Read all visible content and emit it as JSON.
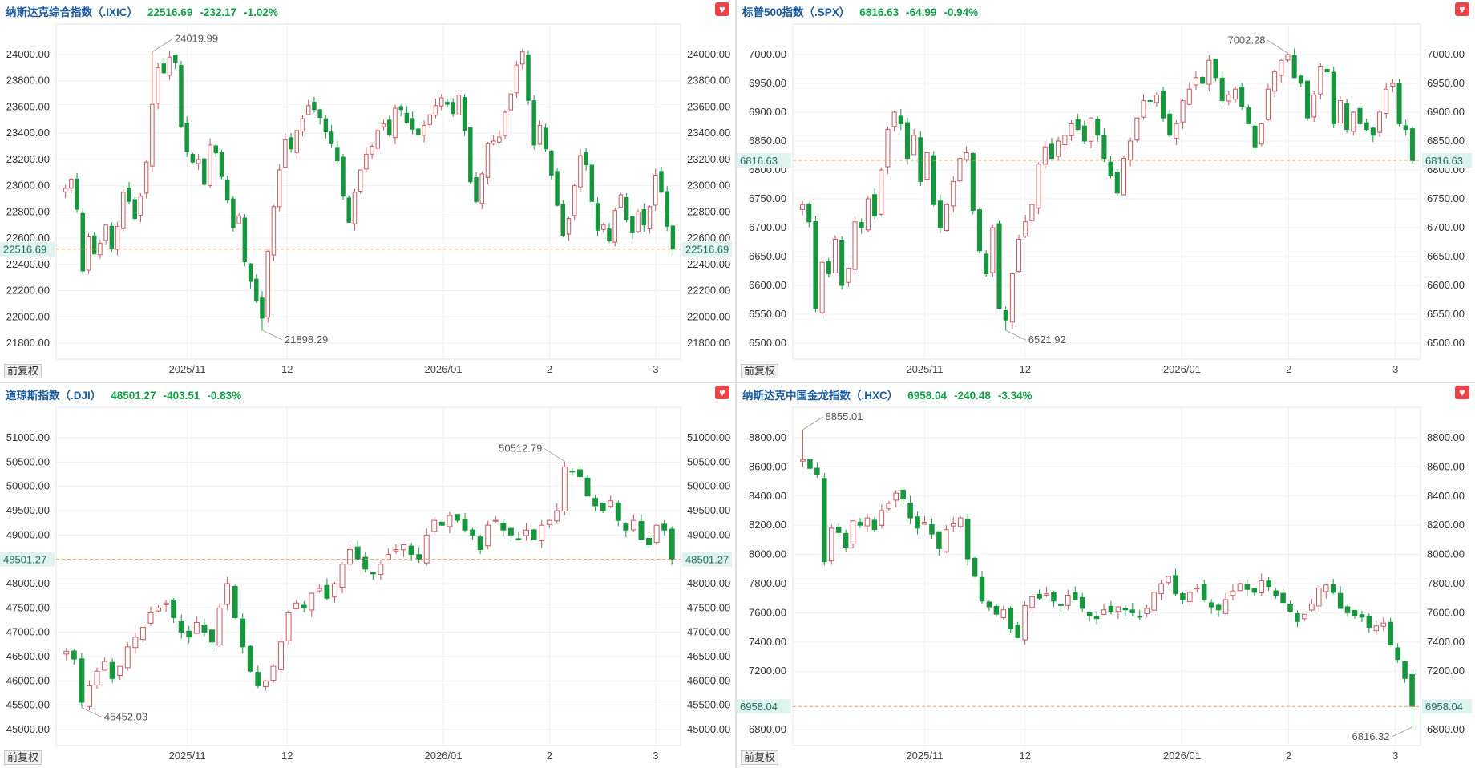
{
  "adjust_label": "前复权",
  "favorite_icon": "heart-icon",
  "colors": {
    "up": "#ffffff",
    "up_stroke": "#c9585f",
    "down": "#17963e",
    "grid": "#eef0f3",
    "ref_line": "#e8a06a",
    "price_tag": "#dff4ee",
    "text_green": "#16a04a",
    "name": "#1a5aa0"
  },
  "charts": [
    {
      "id": "ixic",
      "name": "纳斯达克综合指数（.IXIC）",
      "price": "22516.69",
      "change": "-232.17",
      "change_pct": "-1.02%",
      "chart_data": {
        "type": "candlestick",
        "y_ticks": [
          "24000.00",
          "23800.00",
          "23600.00",
          "23400.00",
          "23200.00",
          "23000.00",
          "22800.00",
          "22600.00",
          "22400.00",
          "22200.00",
          "22000.00",
          "21800.00"
        ],
        "y_range": [
          21800,
          24000
        ],
        "x_labels": [
          "2025/11",
          "12",
          "2026/01",
          "2",
          "3"
        ],
        "x_label_positions": [
          0.21,
          0.37,
          0.62,
          0.79,
          0.96
        ],
        "last_price": 22516.69,
        "last_price_label": "22516.69",
        "high": 24019.99,
        "high_label": "24019.99",
        "low": 21898.29,
        "low_label": "21898.29",
        "closes": [
          22980,
          23050,
          22820,
          22350,
          22610,
          22480,
          22560,
          22700,
          22520,
          22690,
          22950,
          22880,
          22750,
          22920,
          23180,
          23620,
          23900,
          23860,
          23980,
          23940,
          23450,
          23260,
          23180,
          23200,
          23010,
          23310,
          23250,
          23070,
          22890,
          22680,
          22770,
          22420,
          22270,
          22120,
          21990,
          22500,
          22840,
          23120,
          23350,
          23280,
          23420,
          23510,
          23610,
          23580,
          23520,
          23410,
          23320,
          23190,
          22920,
          22720,
          22950,
          23120,
          23240,
          23300,
          23420,
          23470,
          23390,
          23590,
          23580,
          23480,
          23430,
          23390,
          23460,
          23540,
          23610,
          23670,
          23620,
          23550,
          23690,
          23420,
          23030,
          22880,
          23090,
          23320,
          23340,
          23370,
          23560,
          23700,
          23920,
          24020,
          23650,
          23310,
          23460,
          23280,
          23080,
          22850,
          22620,
          22750,
          23000,
          23230,
          23160,
          22880,
          22660,
          22700,
          22580,
          22810,
          22930,
          22740,
          22640,
          22800,
          22700,
          22840,
          23080,
          22950,
          22690,
          22516
        ],
        "high_idx": 15,
        "low_idx": 34
      }
    },
    {
      "id": "spx",
      "name": "标普500指数（.SPX）",
      "price": "6816.63",
      "change": "-64.99",
      "change_pct": "-0.94%",
      "chart_data": {
        "type": "candlestick",
        "y_ticks": [
          "7000.00",
          "6950.00",
          "6900.00",
          "6850.00",
          "6800.00",
          "6750.00",
          "6700.00",
          "6650.00",
          "6600.00",
          "6550.00",
          "6500.00"
        ],
        "y_range": [
          6500,
          7000
        ],
        "x_labels": [
          "2025/11",
          "12",
          "2026/01",
          "2",
          "3"
        ],
        "x_label_positions": [
          0.21,
          0.37,
          0.62,
          0.79,
          0.96
        ],
        "last_price": 6816.63,
        "last_price_label": "6816.63",
        "high": 7002.28,
        "high_label": "7002.28",
        "low": 6521.92,
        "low_label": "6521.92",
        "closes": [
          6740,
          6710,
          6560,
          6640,
          6620,
          6680,
          6600,
          6630,
          6710,
          6700,
          6750,
          6720,
          6800,
          6870,
          6900,
          6880,
          6820,
          6860,
          6780,
          6830,
          6740,
          6700,
          6740,
          6780,
          6820,
          6830,
          6730,
          6660,
          6620,
          6700,
          6560,
          6540,
          6620,
          6680,
          6710,
          6740,
          6810,
          6840,
          6820,
          6850,
          6860,
          6880,
          6870,
          6850,
          6890,
          6860,
          6820,
          6790,
          6760,
          6820,
          6850,
          6890,
          6920,
          6920,
          6930,
          6890,
          6860,
          6880,
          6920,
          6940,
          6960,
          6950,
          6990,
          6960,
          6920,
          6930,
          6940,
          6910,
          6880,
          6840,
          6880,
          6940,
          6970,
          6990,
          7000,
          6960,
          6950,
          6890,
          6930,
          6980,
          6970,
          6880,
          6920,
          6870,
          6900,
          6880,
          6870,
          6860,
          6900,
          6940,
          6950,
          6880,
          6870,
          6816
        ],
        "high_idx": 74,
        "low_idx": 31
      }
    },
    {
      "id": "dji",
      "name": "道琼斯指数（.DJI）",
      "price": "48501.27",
      "change": "-403.51",
      "change_pct": "-0.83%",
      "chart_data": {
        "type": "candlestick",
        "y_ticks": [
          "51000.00",
          "50500.00",
          "50000.00",
          "49500.00",
          "49000.00",
          "48500.00",
          "48000.00",
          "47500.00",
          "47000.00",
          "46500.00",
          "46000.00",
          "45500.00",
          "45000.00"
        ],
        "y_range": [
          45000,
          51000
        ],
        "x_labels": [
          "2025/11",
          "12",
          "2026/01",
          "2",
          "3"
        ],
        "x_label_positions": [
          0.21,
          0.37,
          0.62,
          0.79,
          0.96
        ],
        "last_price": 48501.27,
        "last_price_label": "48501.27",
        "high": 50512.79,
        "high_label": "50512.79",
        "low": 45452.03,
        "low_label": "45452.03",
        "closes": [
          46610,
          46450,
          45560,
          45900,
          46200,
          46400,
          46050,
          46300,
          46700,
          46900,
          47100,
          47400,
          47500,
          47600,
          47300,
          47000,
          46900,
          47200,
          47000,
          46800,
          47500,
          48000,
          47300,
          46700,
          46200,
          45900,
          46000,
          46300,
          46800,
          47400,
          47600,
          47500,
          47800,
          47900,
          47700,
          48000,
          48400,
          48700,
          48500,
          48300,
          48200,
          48400,
          48600,
          48700,
          48800,
          48600,
          48500,
          49000,
          49300,
          49200,
          49400,
          49300,
          49100,
          49000,
          48700,
          49200,
          49300,
          49100,
          49000,
          48900,
          49100,
          48900,
          49200,
          49300,
          49500,
          50400,
          50300,
          50200,
          49800,
          49600,
          49500,
          49700,
          49300,
          49100,
          49300,
          48900,
          48800,
          49200,
          49100,
          48501
        ],
        "high_idx": 65,
        "low_idx": 2
      }
    },
    {
      "id": "hxc",
      "name": "纳斯达克中国金龙指数（.HXC）",
      "price": "6958.04",
      "change": "-240.48",
      "change_pct": "-3.34%",
      "chart_data": {
        "type": "candlestick",
        "y_ticks": [
          "8800.00",
          "8600.00",
          "8400.00",
          "8200.00",
          "8000.00",
          "7800.00",
          "7600.00",
          "7400.00",
          "7200.00",
          "6800.00"
        ],
        "y_range": [
          6800,
          8800
        ],
        "x_labels": [
          "2025/11",
          "12",
          "2026/01",
          "2",
          "3"
        ],
        "x_label_positions": [
          0.21,
          0.37,
          0.62,
          0.79,
          0.96
        ],
        "last_price": 6958.04,
        "last_price_label": "6958.04",
        "high": 8855.01,
        "high_label": "8855.01",
        "low": 6816.32,
        "low_label": "6816.32",
        "closes": [
          8650,
          8590,
          8550,
          7950,
          8180,
          8150,
          8050,
          8230,
          8200,
          8250,
          8170,
          8300,
          8350,
          8420,
          8380,
          8250,
          8180,
          8220,
          8140,
          8040,
          8170,
          8210,
          8250,
          7970,
          7850,
          7680,
          7640,
          7590,
          7620,
          7490,
          7430,
          7650,
          7710,
          7700,
          7730,
          7680,
          7650,
          7720,
          7690,
          7630,
          7580,
          7560,
          7620,
          7610,
          7640,
          7620,
          7600,
          7570,
          7630,
          7740,
          7800,
          7850,
          7730,
          7690,
          7740,
          7770,
          7690,
          7640,
          7620,
          7690,
          7750,
          7800,
          7760,
          7740,
          7820,
          7780,
          7720,
          7670,
          7610,
          7540,
          7590,
          7660,
          7770,
          7790,
          7740,
          7630,
          7600,
          7580,
          7570,
          7500,
          7510,
          7530,
          7380,
          7280,
          7150,
          6958
        ],
        "high_idx": 0,
        "low_idx": 85
      }
    }
  ]
}
